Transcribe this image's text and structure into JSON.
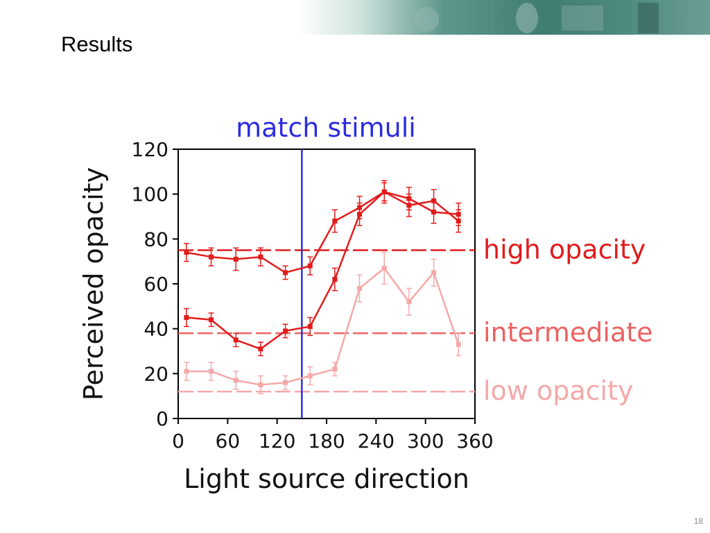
{
  "slide": {
    "title": "Results",
    "number": "18"
  },
  "banner": {
    "icons": [
      "face-icon",
      "person-icon",
      "tunnel-icon",
      "lamp-icon"
    ]
  },
  "chart_data": {
    "type": "line",
    "xlabel": "Light source direction",
    "ylabel": "Perceived opacity",
    "xlim": [
      0,
      360
    ],
    "ylim": [
      0,
      120
    ],
    "xticks": [
      0,
      60,
      120,
      180,
      240,
      300,
      360
    ],
    "yticks": [
      0,
      20,
      40,
      60,
      80,
      100,
      120
    ],
    "grid": false,
    "colors": {
      "high": "#e21b1b",
      "intermediate": "#ee6262",
      "low": "#f5a8a8",
      "match": "#2c2ce0"
    },
    "match_line": {
      "x": 150,
      "label": "match stimuli"
    },
    "reference_lines": [
      {
        "key": "high",
        "y": 75,
        "label": "high opacity"
      },
      {
        "key": "intermediate",
        "y": 38,
        "label": "intermediate"
      },
      {
        "key": "low",
        "y": 12,
        "label": "low opacity"
      }
    ],
    "x": [
      10,
      40,
      70,
      100,
      130,
      160,
      190,
      220,
      250,
      280,
      310,
      340
    ],
    "series": [
      {
        "key": "high",
        "values": [
          74,
          72,
          71,
          72,
          65,
          68,
          88,
          94,
          101,
          98,
          92,
          91
        ],
        "errors": [
          4,
          4,
          5,
          4,
          3,
          4,
          5,
          5,
          4,
          5,
          5,
          5
        ]
      },
      {
        "key": "high",
        "values": [
          45,
          44,
          35,
          31,
          39,
          41,
          62,
          91,
          101,
          95,
          97,
          88
        ],
        "errors": [
          4,
          3,
          3,
          3,
          3,
          4,
          5,
          5,
          5,
          5,
          5,
          5
        ]
      },
      {
        "key": "low",
        "values": [
          21,
          21,
          17,
          15,
          16,
          19,
          22,
          58,
          67,
          52,
          65,
          33
        ],
        "errors": [
          4,
          4,
          4,
          4,
          3,
          4,
          3,
          6,
          7,
          6,
          6,
          5
        ]
      }
    ]
  }
}
